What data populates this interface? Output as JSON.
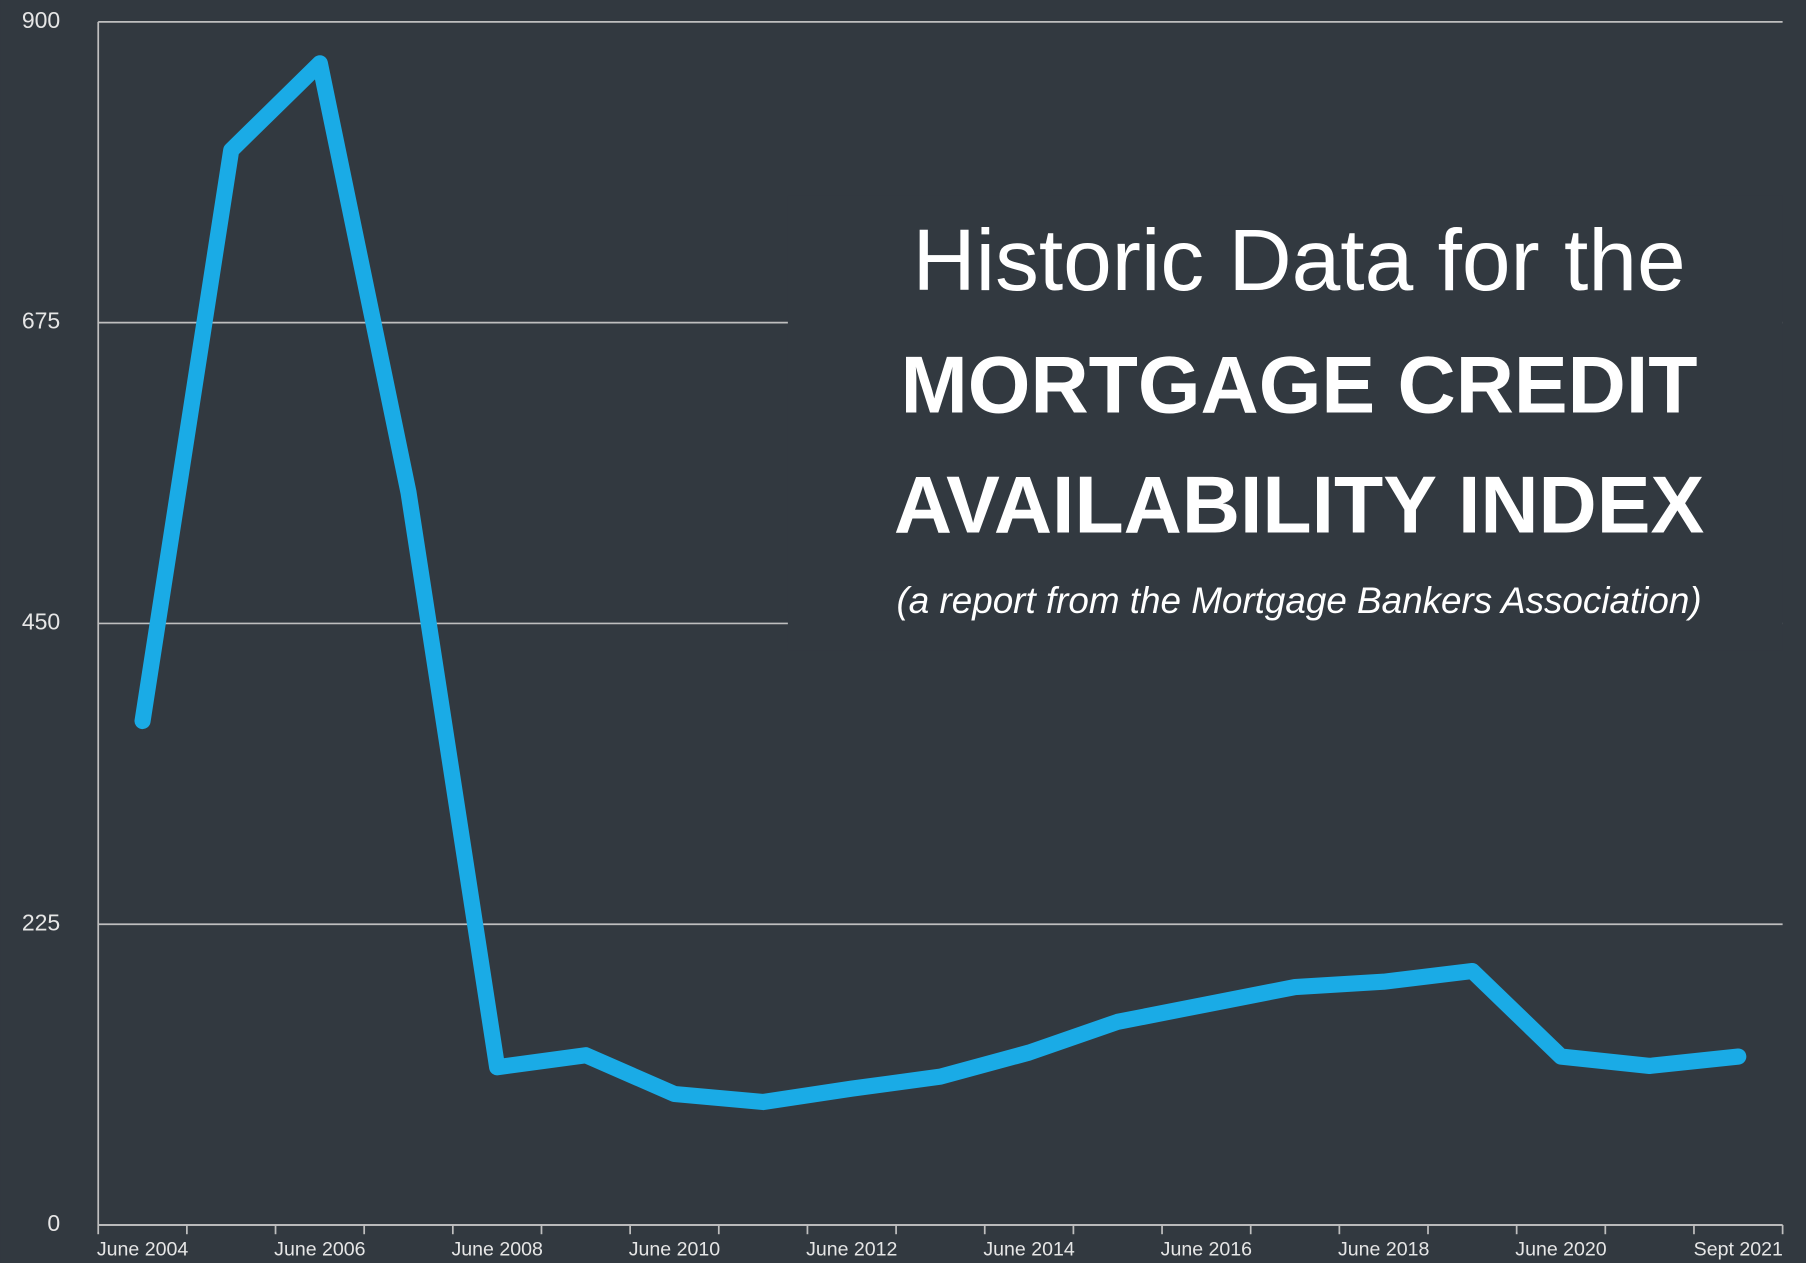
{
  "chart_data": {
    "type": "line",
    "title_lines": [
      "Historic Data for the",
      "MORTGAGE CREDIT",
      "AVAILABILITY INDEX"
    ],
    "subtitle": "(a report from the Mortgage Bankers Association)",
    "categories": [
      "June 2004",
      null,
      "June 2006",
      null,
      "June 2008",
      null,
      "June 2010",
      null,
      "June 2012",
      null,
      "June 2014",
      null,
      "June 2016",
      null,
      "June 2018",
      null,
      "June 2020",
      null,
      "Sept 2021"
    ],
    "series": [
      {
        "color": "#1aabe6",
        "values": [
          377,
          804,
          869,
          548,
          118,
          127,
          98,
          92,
          102,
          111,
          129,
          152,
          165,
          178,
          182,
          190,
          126,
          119,
          126
        ]
      }
    ],
    "ylim": [
      0,
      900
    ],
    "yticks": [
      0,
      225,
      450,
      675,
      900
    ],
    "grid": true
  }
}
